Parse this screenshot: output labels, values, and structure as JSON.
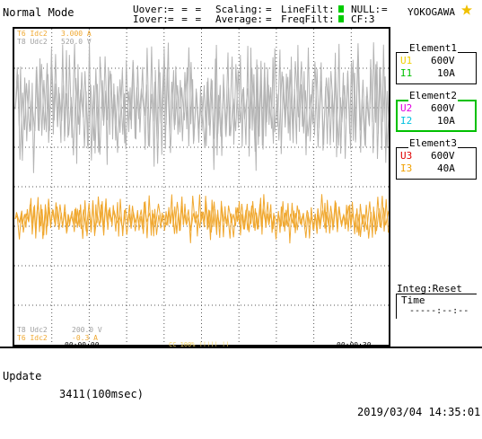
{
  "header": {
    "mode": "Normal Mode",
    "uover_label": "Uover:",
    "uover_value": "= = =",
    "iover_label": "Iover:",
    "iover_value": "= = =",
    "scaling_label": "Scaling:",
    "scaling_value": "=",
    "average_label": "Average:",
    "average_value": "=",
    "linefilt_label": "LineFilt:",
    "freqfilt_label": "FreqFilt:",
    "null_label": "NULL:",
    "null_value": "=",
    "cf": "CF:3",
    "brand": "YOKOGAWA"
  },
  "screen": {
    "top_left_1": "T6 Idc2",
    "top_left_1_val": "3.000 A",
    "top_left_2": "T8 Udc2",
    "top_left_2_val": "520.0 V",
    "bottom_left_1": "T8 Udc2",
    "bottom_left_1_val": "200.0 V",
    "bottom_left_2": "T6 Idc2",
    "bottom_left_2_val": "-0.3 A",
    "time_start": "00:00:00",
    "time_end": "00:00:30",
    "bottom_center": "CC 100% ||||| ||"
  },
  "elements": [
    {
      "title": "Element1",
      "u_label": "U1",
      "u_value": "600V",
      "i_label": "I1",
      "i_value": "10A",
      "u_color": "#f0d000",
      "i_color": "#00c000",
      "border_color": "#000000"
    },
    {
      "title": "Element2",
      "u_label": "U2",
      "u_value": "600V",
      "i_label": "I2",
      "i_value": "10A",
      "u_color": "#e000e0",
      "i_color": "#00c0e0",
      "border_color": "#00c000"
    },
    {
      "title": "Element3",
      "u_label": "U3",
      "u_value": "600V",
      "i_label": "I3",
      "i_value": "40A",
      "u_color": "#e00000",
      "i_color": "#f0a000",
      "border_color": "#e00000"
    }
  ],
  "integ": {
    "title": "Integ:Reset",
    "time_label": "Time",
    "time_value": "-----:--:--"
  },
  "status": {
    "update": "Update",
    "count": "3411(100msec)",
    "datetime": "2019/03/04 14:35:01"
  },
  "colors": {
    "grey_trace": "#b4b4b4",
    "orange_trace": "#f0a830",
    "grid": "#555555",
    "indicator_green": "#00cc00",
    "brand_star": "#f0c000"
  },
  "icons": [
    "yokogawa-star-icon"
  ]
}
